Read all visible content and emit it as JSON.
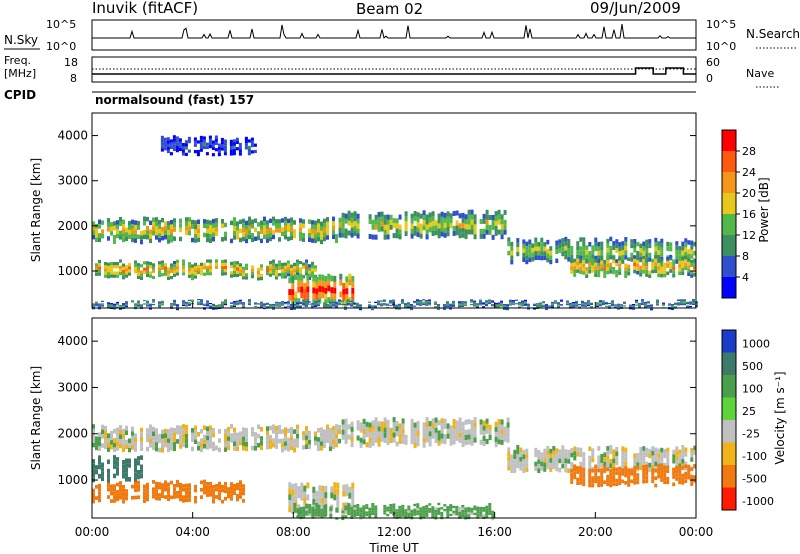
{
  "header": {
    "station": "Inuvik (fitACF)",
    "beam": "Beam 02",
    "date": "09/Jun/2009"
  },
  "nsky_panel": {
    "left_label": "N.Sky",
    "left_ticks": [
      "10^5",
      "10^0"
    ],
    "right_label": "N.Search",
    "right_ticks": [
      "10^5",
      "10^0"
    ]
  },
  "freq_panel": {
    "left_label_1": "Freq.",
    "left_label_2": "[MHz]",
    "left_ticks": [
      "18",
      "8"
    ],
    "right_label": "Nave",
    "right_ticks": [
      "60",
      "0"
    ]
  },
  "cpid": {
    "label": "CPID",
    "program": "normalsound (fast) 157"
  },
  "time_axis": {
    "label": "Time UT",
    "ticks": [
      "00:00",
      "04:00",
      "08:00",
      "12:00",
      "16:00",
      "20:00",
      "00:00"
    ]
  },
  "power_panel": {
    "ylabel": "Slant Range [km]",
    "yticks": [
      "1000",
      "2000",
      "3000",
      "4000"
    ],
    "colorbar_label": "Power [dB]",
    "colorbar_ticks": [
      "4",
      "8",
      "12",
      "16",
      "20",
      "24",
      "28"
    ],
    "colorbar_colors": [
      "#0000ff",
      "#2f4fcf",
      "#3d8f5f",
      "#52b84a",
      "#e8c81a",
      "#f5961a",
      "#ff5a10",
      "#ff0000"
    ]
  },
  "velocity_panel": {
    "ylabel": "Slant Range [km]",
    "yticks": [
      "1000",
      "2000",
      "3000",
      "4000"
    ],
    "colorbar_label": "Velocity [m s⁻¹]",
    "colorbar_ticks": [
      "1000",
      "500",
      "100",
      "25",
      "-25",
      "-100",
      "-500",
      "-1000"
    ],
    "colorbar_colors": [
      "#1a3cc8",
      "#3d7a6a",
      "#4aa04a",
      "#5cd43a",
      "#c0c0c0",
      "#f0b41a",
      "#f07a10",
      "#ff1a00"
    ]
  },
  "chart_data": [
    {
      "type": "heatmap",
      "title": "Power",
      "xlabel": "Time UT",
      "ylabel": "Slant Range [km]",
      "x_range_hours": [
        0,
        24
      ],
      "ylim": [
        180,
        4500
      ],
      "colorbar": {
        "label": "Power [dB]",
        "range": [
          0,
          32
        ]
      },
      "bands": [
        {
          "t0": 0.0,
          "t1": 9.8,
          "range_lo": 1650,
          "range_hi": 2150,
          "peak_db": 20
        },
        {
          "t0": 9.8,
          "t1": 16.5,
          "range_lo": 1750,
          "range_hi": 2300,
          "peak_db": 18
        },
        {
          "t0": 16.5,
          "t1": 24.0,
          "range_lo": 1200,
          "range_hi": 1700,
          "peak_db": 16
        },
        {
          "t0": 0.0,
          "t1": 9.0,
          "range_lo": 850,
          "range_hi": 1200,
          "peak_db": 22
        },
        {
          "t0": 19.0,
          "t1": 24.0,
          "range_lo": 900,
          "range_hi": 1300,
          "peak_db": 22
        },
        {
          "t0": 7.8,
          "t1": 10.5,
          "range_lo": 250,
          "range_hi": 900,
          "peak_db": 30
        },
        {
          "t0": 0.0,
          "t1": 24.0,
          "range_lo": 190,
          "range_hi": 320,
          "peak_db": 12
        },
        {
          "t0": 2.5,
          "t1": 6.5,
          "range_lo": 3600,
          "range_hi": 3950,
          "peak_db": 6
        }
      ]
    },
    {
      "type": "heatmap",
      "title": "Velocity",
      "xlabel": "Time UT",
      "ylabel": "Slant Range [km]",
      "x_range_hours": [
        0,
        24
      ],
      "ylim": [
        180,
        4500
      ],
      "colorbar": {
        "label": "Velocity [m s⁻¹]",
        "range": [
          -1000,
          1000
        ]
      },
      "bands": [
        {
          "t0": 0.0,
          "t1": 9.8,
          "range_lo": 1650,
          "range_hi": 2150,
          "velocity": 0
        },
        {
          "t0": 9.8,
          "t1": 16.5,
          "range_lo": 1750,
          "range_hi": 2300,
          "velocity": 0
        },
        {
          "t0": 16.5,
          "t1": 24.0,
          "range_lo": 1200,
          "range_hi": 1700,
          "velocity": 0
        },
        {
          "t0": 0.0,
          "t1": 6.0,
          "range_lo": 550,
          "range_hi": 950,
          "velocity": -200
        },
        {
          "t0": 19.0,
          "t1": 24.0,
          "range_lo": 900,
          "range_hi": 1300,
          "velocity": -300
        },
        {
          "t0": 0.0,
          "t1": 2.0,
          "range_lo": 1000,
          "range_hi": 1500,
          "velocity": 200
        },
        {
          "t0": 7.8,
          "t1": 10.5,
          "range_lo": 250,
          "range_hi": 900,
          "velocity": 0
        },
        {
          "t0": 8.0,
          "t1": 16.0,
          "range_lo": 190,
          "range_hi": 450,
          "velocity": 60
        }
      ]
    }
  ]
}
